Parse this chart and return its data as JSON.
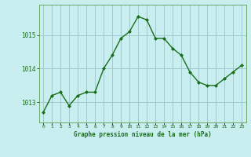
{
  "x": [
    0,
    1,
    2,
    3,
    4,
    5,
    6,
    7,
    8,
    9,
    10,
    11,
    12,
    13,
    14,
    15,
    16,
    17,
    18,
    19,
    20,
    21,
    22,
    23
  ],
  "y": [
    1012.7,
    1013.2,
    1013.3,
    1012.9,
    1013.2,
    1013.3,
    1013.3,
    1014.0,
    1014.4,
    1014.9,
    1015.1,
    1015.55,
    1015.45,
    1014.9,
    1014.9,
    1014.6,
    1014.4,
    1013.9,
    1013.6,
    1013.5,
    1013.5,
    1013.7,
    1013.9,
    1014.1
  ],
  "line_color": "#1a6e1a",
  "marker_color": "#1a6e1a",
  "bg_color": "#c8eef0",
  "plot_bg": "#c8eef0",
  "grid_color": "#a0c8d0",
  "xlabel": "Graphe pression niveau de la mer (hPa)",
  "xlabel_color": "#1a6e1a",
  "tick_color": "#1a6e1a",
  "ylim": [
    1012.4,
    1015.9
  ],
  "yticks": [
    1013,
    1014,
    1015
  ],
  "xlim": [
    -0.5,
    23.5
  ],
  "xticks": [
    0,
    1,
    2,
    3,
    4,
    5,
    6,
    7,
    8,
    9,
    10,
    11,
    12,
    13,
    14,
    15,
    16,
    17,
    18,
    19,
    20,
    21,
    22,
    23
  ],
  "spine_color": "#6aaa6a"
}
